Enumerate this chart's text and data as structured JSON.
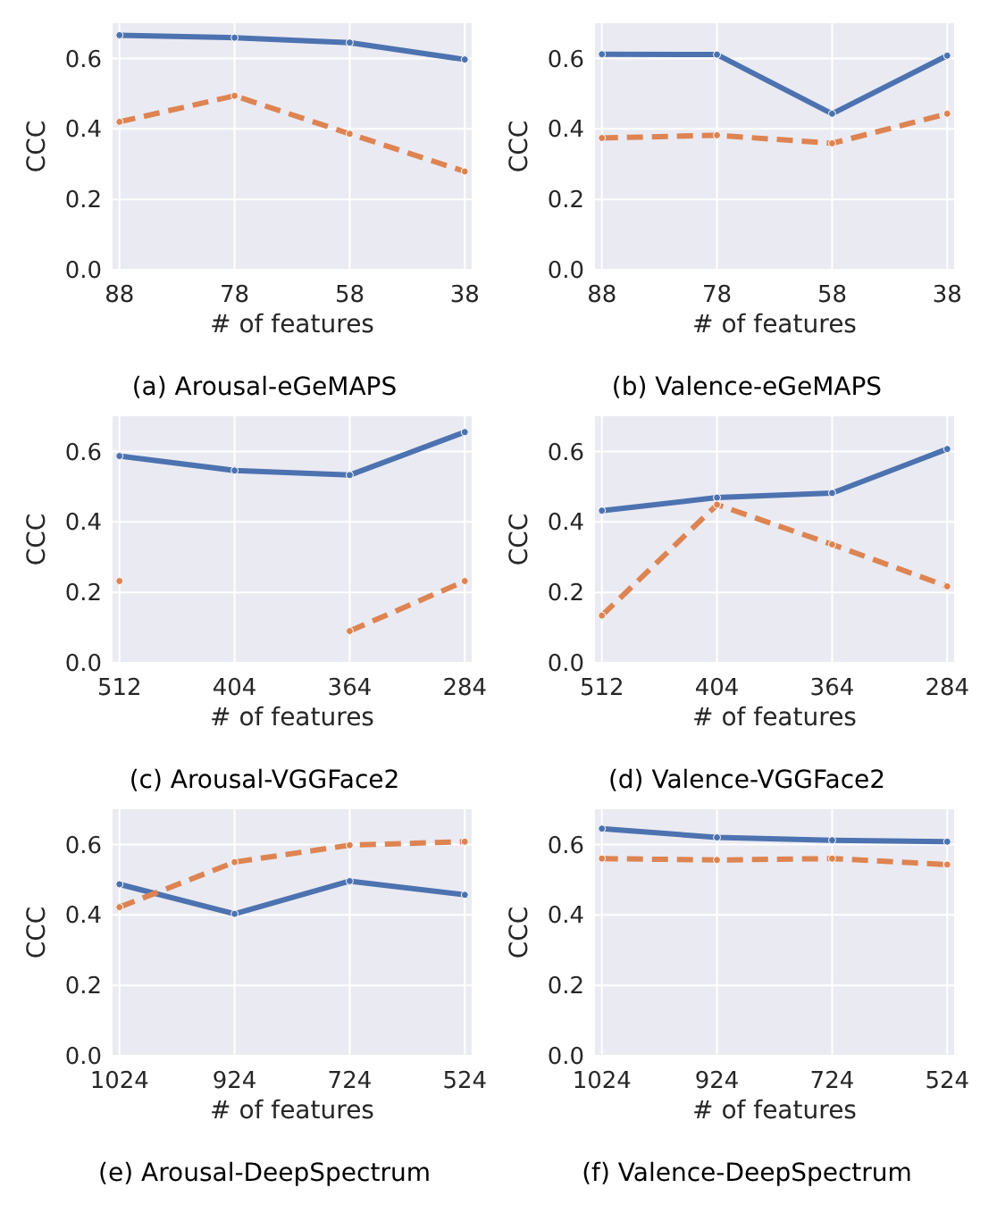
{
  "chart_data": [
    {
      "type": "line",
      "title": "(a) Arousal-eGeMAPS",
      "xlabel": "# of features",
      "ylabel": "CCC",
      "categories": [
        "88",
        "78",
        "58",
        "38"
      ],
      "ylim": [
        0,
        0.7
      ],
      "yticks": [
        {
          "value": 0,
          "label": "0.0"
        },
        {
          "value": 0.2,
          "label": "0.2"
        },
        {
          "value": 0.4,
          "label": "0.4"
        },
        {
          "value": 0.6,
          "label": "0.6"
        }
      ],
      "grid": true,
      "marker": "circle",
      "series": [
        {
          "color": "#4c72b0",
          "line_style": "solid",
          "values": [
            0.666,
            0.659,
            0.645,
            0.597
          ]
        },
        {
          "color": "#dd8452",
          "line_style": "dashed",
          "values": [
            0.42,
            0.494,
            0.386,
            0.279
          ]
        }
      ]
    },
    {
      "type": "line",
      "title": "(b) Valence-eGeMAPS",
      "xlabel": "# of features",
      "ylabel": "CCC",
      "categories": [
        "88",
        "78",
        "58",
        "38"
      ],
      "ylim": [
        0,
        0.7
      ],
      "yticks": [
        {
          "value": 0,
          "label": "0.0"
        },
        {
          "value": 0.2,
          "label": "0.2"
        },
        {
          "value": 0.4,
          "label": "0.4"
        },
        {
          "value": 0.6,
          "label": "0.6"
        }
      ],
      "grid": true,
      "marker": "circle",
      "series": [
        {
          "color": "#4c72b0",
          "line_style": "solid",
          "values": [
            0.612,
            0.611,
            0.443,
            0.608
          ]
        },
        {
          "color": "#dd8452",
          "line_style": "dashed",
          "values": [
            0.374,
            0.382,
            0.359,
            0.443
          ]
        }
      ]
    },
    {
      "type": "line",
      "title": "(c) Arousal-VGGFace2",
      "xlabel": "# of features",
      "ylabel": "CCC",
      "categories": [
        "512",
        "404",
        "364",
        "284"
      ],
      "ylim": [
        0,
        0.7
      ],
      "yticks": [
        {
          "value": 0,
          "label": "0.0"
        },
        {
          "value": 0.2,
          "label": "0.2"
        },
        {
          "value": 0.4,
          "label": "0.4"
        },
        {
          "value": 0.6,
          "label": "0.6"
        }
      ],
      "grid": true,
      "marker": "circle",
      "series": [
        {
          "color": "#4c72b0",
          "line_style": "solid",
          "values": [
            0.587,
            0.546,
            0.533,
            0.655
          ]
        },
        {
          "color": "#dd8452",
          "line_style": "dashed",
          "values": [
            0.232,
            null,
            0.09,
            0.232
          ]
        }
      ]
    },
    {
      "type": "line",
      "title": "(d) Valence-VGGFace2",
      "xlabel": "# of features",
      "ylabel": "CCC",
      "categories": [
        "512",
        "404",
        "364",
        "284"
      ],
      "ylim": [
        0,
        0.7
      ],
      "yticks": [
        {
          "value": 0,
          "label": "0.0"
        },
        {
          "value": 0.2,
          "label": "0.2"
        },
        {
          "value": 0.4,
          "label": "0.4"
        },
        {
          "value": 0.6,
          "label": "0.6"
        }
      ],
      "grid": true,
      "marker": "circle",
      "series": [
        {
          "color": "#4c72b0",
          "line_style": "solid",
          "values": [
            0.432,
            0.469,
            0.482,
            0.607
          ]
        },
        {
          "color": "#dd8452",
          "line_style": "dashed",
          "values": [
            0.134,
            0.449,
            0.336,
            0.217
          ]
        }
      ]
    },
    {
      "type": "line",
      "title": "(e) Arousal-DeepSpectrum",
      "xlabel": "# of features",
      "ylabel": "CCC",
      "categories": [
        "1024",
        "924",
        "724",
        "524"
      ],
      "ylim": [
        0,
        0.7
      ],
      "yticks": [
        {
          "value": 0,
          "label": "0.0"
        },
        {
          "value": 0.2,
          "label": "0.2"
        },
        {
          "value": 0.4,
          "label": "0.4"
        },
        {
          "value": 0.6,
          "label": "0.6"
        }
      ],
      "grid": true,
      "marker": "circle",
      "series": [
        {
          "color": "#4c72b0",
          "line_style": "solid",
          "values": [
            0.487,
            0.403,
            0.496,
            0.457
          ]
        },
        {
          "color": "#dd8452",
          "line_style": "dashed",
          "values": [
            0.422,
            0.55,
            0.598,
            0.608
          ]
        }
      ]
    },
    {
      "type": "line",
      "title": "(f) Valence-DeepSpectrum",
      "xlabel": "# of features",
      "ylabel": "CCC",
      "categories": [
        "1024",
        "924",
        "724",
        "524"
      ],
      "ylim": [
        0,
        0.7
      ],
      "yticks": [
        {
          "value": 0,
          "label": "0.0"
        },
        {
          "value": 0.2,
          "label": "0.2"
        },
        {
          "value": 0.4,
          "label": "0.4"
        },
        {
          "value": 0.6,
          "label": "0.6"
        }
      ],
      "grid": true,
      "marker": "circle",
      "series": [
        {
          "color": "#4c72b0",
          "line_style": "solid",
          "values": [
            0.645,
            0.62,
            0.612,
            0.608
          ]
        },
        {
          "color": "#dd8452",
          "line_style": "dashed",
          "values": [
            0.56,
            0.556,
            0.56,
            0.543
          ]
        }
      ]
    }
  ]
}
